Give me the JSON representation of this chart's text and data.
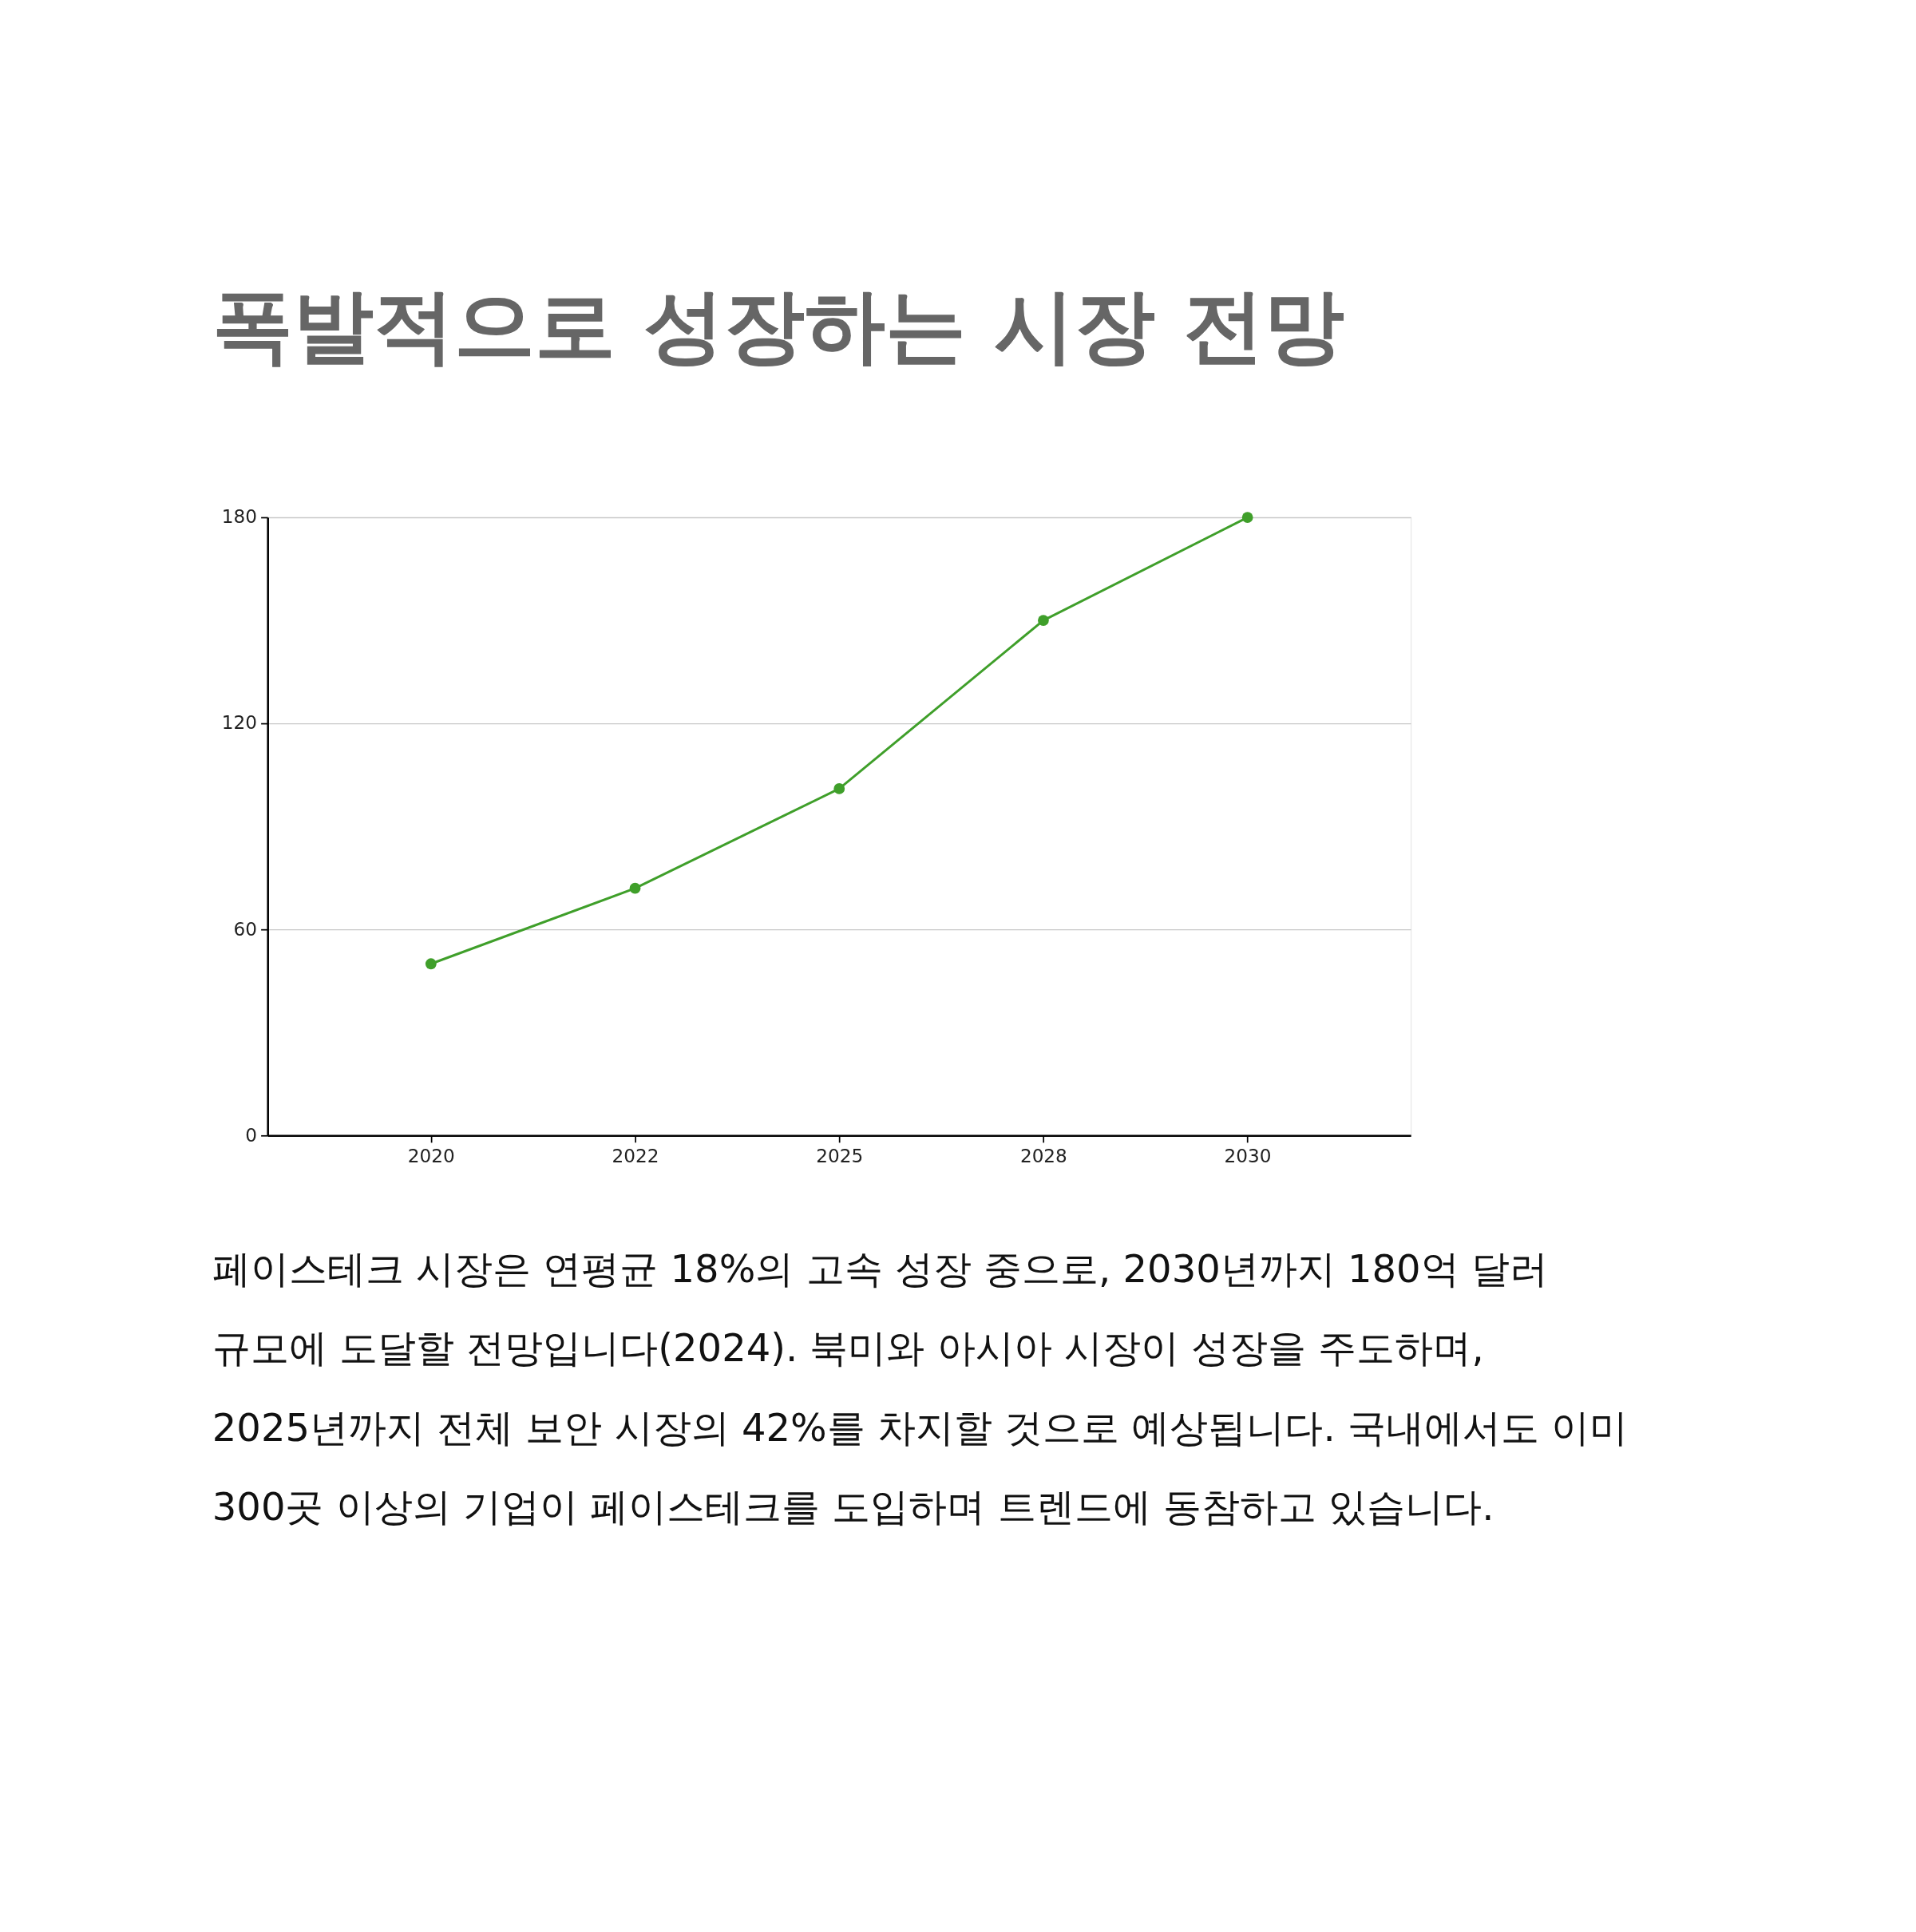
{
  "chart_data": {
    "type": "line",
    "title": "폭발적으로 성장하는 시장 전망",
    "categories": [
      "2020",
      "2022",
      "2025",
      "2028",
      "2030"
    ],
    "series": [
      {
        "color": "#3f9f2a",
        "values": [
          50,
          72,
          101,
          150,
          180
        ]
      }
    ],
    "ylim": [
      0,
      180
    ],
    "yticks": [
      0,
      60,
      120,
      180
    ],
    "grid": "y",
    "marker": "circle",
    "line_style": "solid",
    "annotations": [
      "페이스테크 시장은 연평균 18%의 고속 성장 중으로, 2030년까지 180억 달러 규모에 도달할 전망입니다(2024). 북미와 아시아 시장이 성장을 주도하며, 2025년까지 전체 보안 시장의 42%를 차지할 것으로 예상됩니다. 국내에서도 이미 300곳 이상의 기업이 페이스테크를 도입하며 트렌드에 동참하고 있습니다."
    ]
  }
}
